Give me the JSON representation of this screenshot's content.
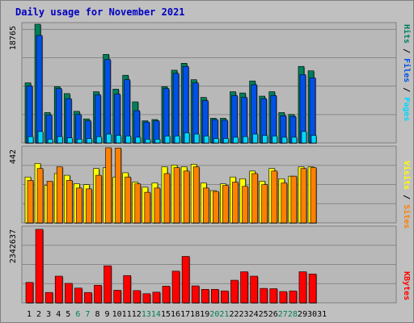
{
  "title": "Daily usage for November 2021",
  "colors": {
    "background": "#c0c0c0",
    "plot_bg": "#b8b8b8",
    "title": "#0000c0",
    "hits": "#00805a",
    "files": "#0050e8",
    "pages": "#00d8ff",
    "visits": "#ffff00",
    "sites": "#ff8000",
    "kbytes": "#ff0000",
    "weekend_label": "#00805a",
    "weekday_label": "#000000"
  },
  "chart_data": [
    {
      "type": "bar",
      "panel": "top",
      "ymax_label": "18765",
      "ymax": 18765,
      "legend": [
        "Pages",
        "Files",
        "Hits"
      ],
      "categories": [
        "1",
        "2",
        "3",
        "4",
        "5",
        "6",
        "7",
        "8",
        "9",
        "10",
        "11",
        "12",
        "13",
        "14",
        "15",
        "16",
        "17",
        "18",
        "19",
        "20",
        "21",
        "22",
        "23",
        "24",
        "25",
        "26",
        "27",
        "28",
        "29",
        "30",
        "31"
      ],
      "weekend_days": [
        "6",
        "7",
        "13",
        "14",
        "20",
        "21",
        "27",
        "28"
      ],
      "series": [
        {
          "name": "Hits",
          "values": [
            9500,
            18765,
            4800,
            8900,
            7800,
            5000,
            3800,
            8100,
            14000,
            8500,
            10700,
            6500,
            3500,
            3700,
            8900,
            11500,
            12600,
            10000,
            7200,
            3900,
            3900,
            8100,
            7900,
            9800,
            7400,
            8100,
            4800,
            4500,
            12100,
            11400,
            0
          ]
        },
        {
          "name": "Files",
          "values": [
            9000,
            17000,
            4400,
            8600,
            7000,
            4500,
            3500,
            7600,
            13200,
            7700,
            10000,
            5100,
            3300,
            3500,
            8600,
            11000,
            12100,
            9500,
            6700,
            3700,
            3600,
            7500,
            7200,
            9200,
            7000,
            7500,
            4300,
            4200,
            10800,
            10300,
            0
          ]
        },
        {
          "name": "Pages",
          "values": [
            1000,
            1800,
            600,
            1000,
            800,
            600,
            700,
            1000,
            1400,
            1200,
            1100,
            900,
            600,
            600,
            1100,
            1100,
            1600,
            1400,
            1100,
            700,
            700,
            900,
            1000,
            1400,
            1200,
            1100,
            900,
            900,
            1800,
            1200,
            0
          ]
        }
      ]
    },
    {
      "type": "bar",
      "panel": "middle",
      "ymax_label": "442",
      "ymax": 442,
      "legend": [
        "Sites",
        "Visits"
      ],
      "categories": [
        "1",
        "2",
        "3",
        "4",
        "5",
        "6",
        "7",
        "8",
        "9",
        "10",
        "11",
        "12",
        "13",
        "14",
        "15",
        "16",
        "17",
        "18",
        "19",
        "20",
        "21",
        "22",
        "23",
        "24",
        "25",
        "26",
        "27",
        "28",
        "29",
        "30",
        "31"
      ],
      "series": [
        {
          "name": "Visits",
          "values": [
            270,
            350,
            220,
            290,
            280,
            230,
            225,
            320,
            325,
            270,
            295,
            240,
            210,
            235,
            330,
            340,
            330,
            345,
            235,
            190,
            230,
            270,
            260,
            305,
            245,
            320,
            260,
            275,
            330,
            330,
            0
          ]
        },
        {
          "name": "Sites",
          "values": [
            250,
            320,
            245,
            330,
            250,
            205,
            200,
            280,
            442,
            440,
            270,
            230,
            180,
            205,
            290,
            325,
            305,
            330,
            205,
            185,
            220,
            240,
            215,
            290,
            225,
            305,
            235,
            275,
            320,
            325,
            0
          ]
        }
      ]
    },
    {
      "type": "bar",
      "panel": "bottom",
      "ymax_label": "2342637",
      "ymax": 2342637,
      "legend": [
        "KBytes"
      ],
      "categories": [
        "1",
        "2",
        "3",
        "4",
        "5",
        "6",
        "7",
        "8",
        "9",
        "10",
        "11",
        "12",
        "13",
        "14",
        "15",
        "16",
        "17",
        "18",
        "19",
        "20",
        "21",
        "22",
        "23",
        "24",
        "25",
        "26",
        "27",
        "28",
        "29",
        "30",
        "31"
      ],
      "series": [
        {
          "name": "KBytes",
          "values": [
            650000,
            2342637,
            330000,
            850000,
            620000,
            470000,
            330000,
            560000,
            1180000,
            400000,
            870000,
            390000,
            290000,
            340000,
            530000,
            1010000,
            1480000,
            540000,
            430000,
            430000,
            380000,
            720000,
            990000,
            850000,
            460000,
            450000,
            360000,
            380000,
            990000,
            920000,
            0
          ]
        }
      ]
    }
  ]
}
